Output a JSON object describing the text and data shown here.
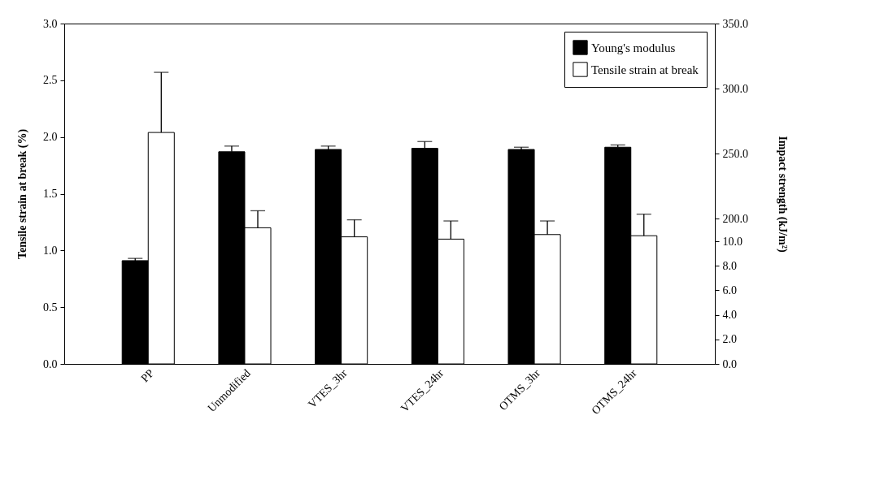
{
  "chart_data": {
    "type": "bar",
    "categories": [
      "PP",
      "Unmodified",
      "VTES_3hr",
      "VTES_24hr",
      "OTMS_3hr",
      "OTMS_24hr"
    ],
    "series": [
      {
        "name": "Young's modulus",
        "color": "#000000",
        "values": [
          0.91,
          1.87,
          1.89,
          1.9,
          1.89,
          1.91
        ],
        "errors": [
          0.02,
          0.05,
          0.03,
          0.06,
          0.02,
          0.02
        ]
      },
      {
        "name": "Tensile strain at break",
        "color": "#ffffff",
        "values": [
          2.04,
          1.2,
          1.12,
          1.1,
          1.14,
          1.13
        ],
        "errors": [
          0.53,
          0.15,
          0.15,
          0.16,
          0.12,
          0.19
        ]
      }
    ],
    "ylabel": "Tensile strain at break (%)",
    "y2label": "Impact strength (kJ/m²)",
    "ylim": [
      0,
      3
    ],
    "yticks": [
      {
        "value": 0,
        "label": "0.0"
      },
      {
        "value": 0.5,
        "label": "0.5"
      },
      {
        "value": 1,
        "label": "1.0"
      },
      {
        "value": 1.5,
        "label": "1.5"
      },
      {
        "value": 2,
        "label": "2.0"
      },
      {
        "value": 2.5,
        "label": "2.5"
      },
      {
        "value": 3,
        "label": "3.0"
      }
    ],
    "y2lim": [
      0,
      10
    ],
    "y2ticks": [
      {
        "value": 0,
        "label": "0.0"
      },
      {
        "value": 2,
        "label": "2.0"
      },
      {
        "value": 4,
        "label": "4.0"
      },
      {
        "value": 6,
        "label": "6.0"
      },
      {
        "value": 8,
        "label": "8.0"
      },
      {
        "value": 10,
        "label": "10.0"
      }
    ],
    "y3lim": [
      200,
      350
    ],
    "y3ticks": [
      {
        "value": 200,
        "label": "200.0"
      },
      {
        "value": 250,
        "label": "250.0"
      },
      {
        "value": 300,
        "label": "300.0"
      },
      {
        "value": 350,
        "label": "350.0"
      }
    ],
    "legend": "top right",
    "grid": false
  }
}
